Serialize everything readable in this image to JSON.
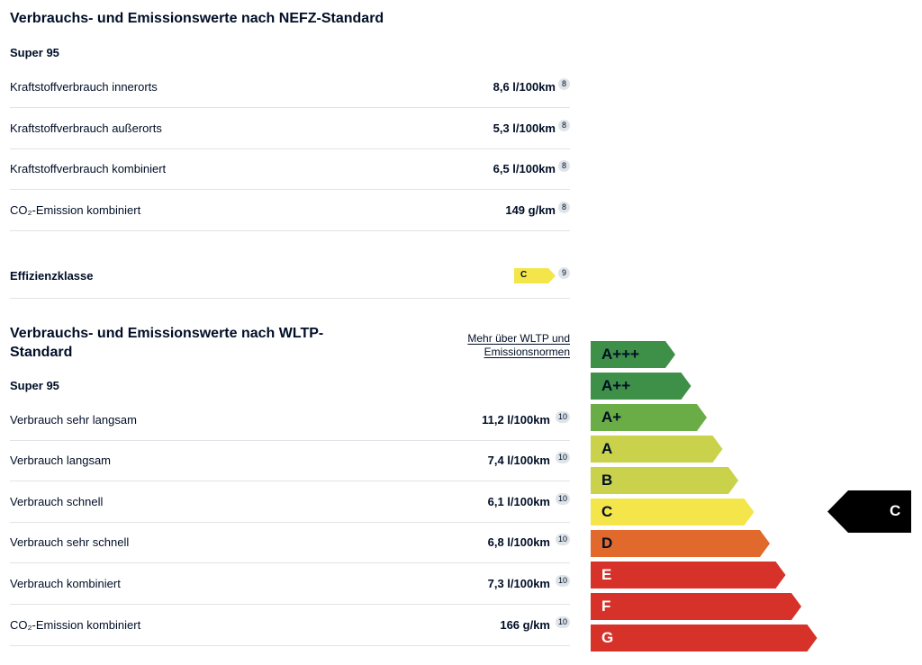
{
  "nefz": {
    "title": "Verbrauchs- und Emissionswerte nach NEFZ-Standard",
    "fuel": "Super 95",
    "rows": [
      {
        "label": "Kraftstoffverbrauch innerorts",
        "value": "8,6 l/100km",
        "footnote": "8"
      },
      {
        "label": "Kraftstoffverbrauch außerorts",
        "value": "5,3 l/100km",
        "footnote": "8"
      },
      {
        "label": "Kraftstoffverbrauch kombiniert",
        "value": "6,5 l/100km",
        "footnote": "8"
      },
      {
        "label": "CO₂-Emission kombiniert",
        "value": "149 g/km",
        "footnote": "8"
      }
    ],
    "efficiency": {
      "label": "Effizienzklasse",
      "class": "C",
      "footnote": "9",
      "color": "#f4e64a"
    }
  },
  "wltp": {
    "title_line1": "Verbrauchs- und Emissionswerte nach WLTP-",
    "title_line2": "Standard",
    "link_line1": "Mehr über WLTP und",
    "link_line2": "Emissionsnormen",
    "fuel": "Super 95",
    "rows": [
      {
        "label": "Verbrauch sehr langsam",
        "value": "11,2 l/100km",
        "footnote": "10"
      },
      {
        "label": "Verbrauch langsam",
        "value": "7,4 l/100km",
        "footnote": "10"
      },
      {
        "label": "Verbrauch schnell",
        "value": "6,1 l/100km",
        "footnote": "10"
      },
      {
        "label": "Verbrauch sehr schnell",
        "value": "6,8 l/100km",
        "footnote": "10"
      },
      {
        "label": "Verbrauch kombiniert",
        "value": "7,3 l/100km",
        "footnote": "10"
      },
      {
        "label": "CO₂-Emission kombiniert",
        "value": "166 g/km",
        "footnote": "10"
      }
    ]
  },
  "energy_label": {
    "classes": [
      {
        "label": "A+++",
        "color": "#3e8f47",
        "text": "dark"
      },
      {
        "label": "A++",
        "color": "#3e8f47",
        "text": "dark"
      },
      {
        "label": "A+",
        "color": "#6aac46",
        "text": "dark"
      },
      {
        "label": "A",
        "color": "#c9d24a",
        "text": "dark"
      },
      {
        "label": "B",
        "color": "#c9d24a",
        "text": "dark"
      },
      {
        "label": "C",
        "color": "#f4e64a",
        "text": "dark"
      },
      {
        "label": "D",
        "color": "#e0692b",
        "text": "dark"
      },
      {
        "label": "E",
        "color": "#d6322a",
        "text": "light"
      },
      {
        "label": "F",
        "color": "#d6322a",
        "text": "light"
      },
      {
        "label": "G",
        "color": "#d6322a",
        "text": "light"
      }
    ],
    "selected": "C",
    "marker_color": "#000000"
  }
}
